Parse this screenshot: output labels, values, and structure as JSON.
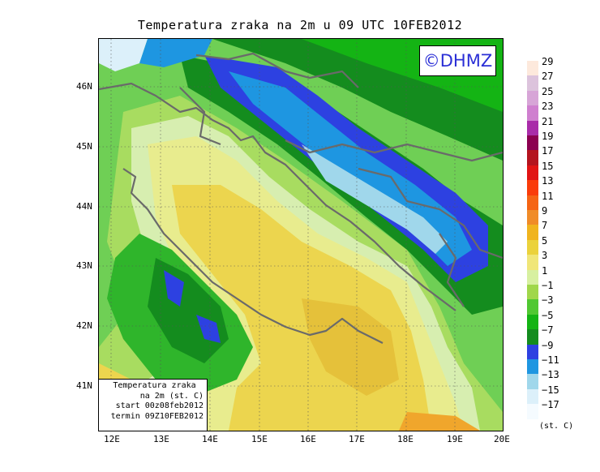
{
  "title": "Temperatura zraka na 2m u 09 UTC 10FEB2012",
  "logo": "©DHMZ",
  "info_box": {
    "line1": "Temperatura zraka",
    "line2": "na 2m (st. C)",
    "line3": "start 00z08feb2012",
    "line4": "termin 09Z10FEB2012"
  },
  "lon_labels": [
    "12E",
    "13E",
    "14E",
    "15E",
    "16E",
    "17E",
    "18E",
    "19E",
    "20E"
  ],
  "lat_labels": [
    "46N",
    "45N",
    "44N",
    "43N",
    "42N",
    "41N"
  ],
  "legend": {
    "labels": [
      "29",
      "27",
      "25",
      "23",
      "21",
      "19",
      "17",
      "15",
      "13",
      "11",
      "9",
      "7",
      "5",
      "3",
      "1",
      "−1",
      "−3",
      "−5",
      "−7",
      "−9",
      "−11",
      "−13",
      "−15",
      "−17"
    ],
    "colors": [
      "#fde9dc",
      "#dcc3dc",
      "#d7a5d7",
      "#cf7fcf",
      "#a92ca9",
      "#8c0050",
      "#b4141e",
      "#e11414",
      "#fa3c0a",
      "#f56414",
      "#f08c28",
      "#f0b41e",
      "#ebd23c",
      "#f0e678",
      "#d7f0a0",
      "#a0d74b",
      "#50c832",
      "#14b414",
      "#148c1e",
      "#2d41e1",
      "#1e96e1",
      "#a0d7eb",
      "#dcf0fa",
      "#f5fbff"
    ],
    "unit": "(st. C)"
  }
}
